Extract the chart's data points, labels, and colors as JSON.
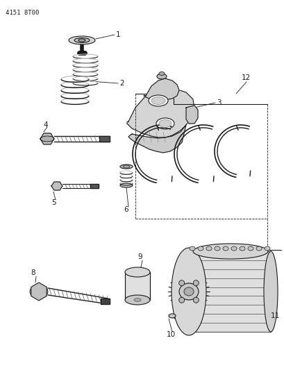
{
  "title_text": "4151 8T00",
  "bg_color": "#ffffff",
  "line_color": "#1a1a1a",
  "fig_width": 4.1,
  "fig_height": 5.33,
  "dpi": 100
}
